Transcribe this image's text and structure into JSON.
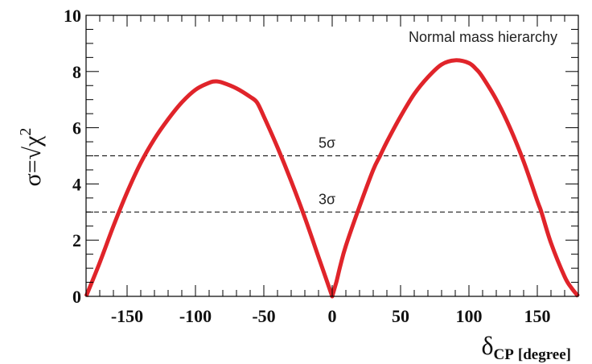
{
  "chart_data": {
    "type": "line",
    "title": "",
    "xlabel": "δCP [degree]",
    "xlabel_main": "δ",
    "xlabel_sub": "CP",
    "xlabel_unit": "[degree]",
    "ylabel": "σ=√χ²",
    "ylabel_main": "σ=√χ",
    "ylabel_sup": "2",
    "xlim": [
      -180,
      180
    ],
    "ylim": [
      0,
      10
    ],
    "xticks": [
      -150,
      -100,
      -50,
      0,
      50,
      100,
      150
    ],
    "xtick_labels": [
      "-150",
      "-100",
      "-50",
      "0",
      "50",
      "100",
      "150"
    ],
    "yticks": [
      0,
      2,
      4,
      6,
      8,
      10
    ],
    "ytick_labels": [
      "0",
      "2",
      "4",
      "6",
      "8",
      "10"
    ],
    "annotation": "Normal mass hierarchy",
    "reference_lines": [
      {
        "y": 5,
        "label": "5σ",
        "style": "dashed"
      },
      {
        "y": 3,
        "label": "3σ",
        "style": "dashed"
      }
    ],
    "series": [
      {
        "name": "Normal mass hierarchy",
        "color": "#e0242a",
        "x": [
          -180,
          -170,
          -160,
          -150,
          -140,
          -130,
          -120,
          -110,
          -100,
          -90,
          -85,
          -80,
          -70,
          -60,
          -55,
          -50,
          -40,
          -30,
          -20,
          -10,
          -5,
          0,
          3,
          6,
          10,
          20,
          30,
          35,
          40,
          50,
          60,
          70,
          80,
          90,
          100,
          106,
          110,
          120,
          130,
          140,
          150,
          153,
          160,
          170,
          175,
          180
        ],
        "y": [
          0,
          1.2,
          2.5,
          3.7,
          4.75,
          5.6,
          6.3,
          6.9,
          7.35,
          7.6,
          7.65,
          7.6,
          7.4,
          7.1,
          6.9,
          6.4,
          5.3,
          4.1,
          2.8,
          1.4,
          0.7,
          0,
          0.5,
          1.1,
          1.8,
          3.2,
          4.5,
          5.0,
          5.5,
          6.4,
          7.2,
          7.8,
          8.25,
          8.4,
          8.3,
          8.05,
          7.8,
          7.0,
          6.0,
          4.8,
          3.4,
          3.0,
          1.9,
          0.7,
          0.3,
          0
        ]
      }
    ]
  }
}
